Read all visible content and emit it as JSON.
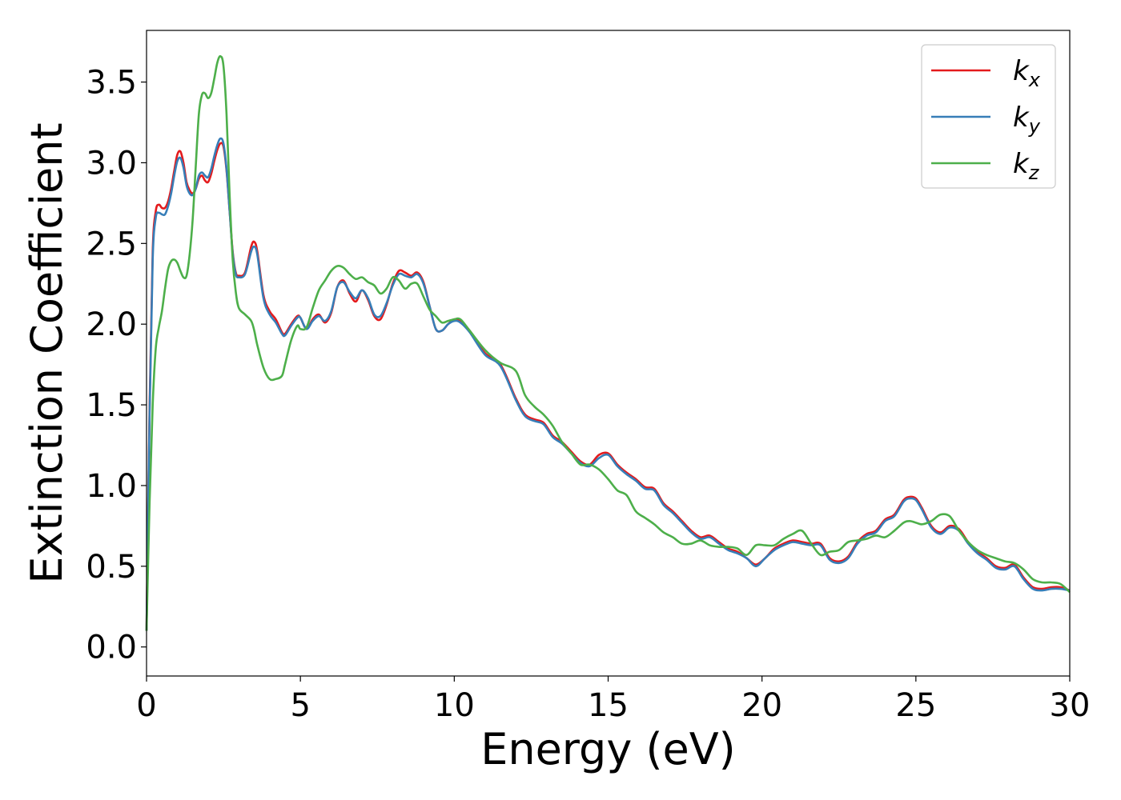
{
  "chart_data": {
    "type": "line",
    "title": "",
    "xlabel": "Energy (eV)",
    "ylabel": "Extinction Coefficient",
    "xlim": [
      0,
      30
    ],
    "ylim": [
      -0.18,
      3.82
    ],
    "xticks": [
      0,
      5,
      10,
      15,
      20,
      25,
      30
    ],
    "xtick_labels": [
      "0",
      "5",
      "10",
      "15",
      "20",
      "25",
      "30"
    ],
    "yticks": [
      0.0,
      0.5,
      1.0,
      1.5,
      2.0,
      2.5,
      3.0,
      3.5
    ],
    "ytick_labels": [
      "0.0",
      "0.5",
      "1.0",
      "1.5",
      "2.0",
      "2.5",
      "3.0",
      "3.5"
    ],
    "grid": false,
    "legend_position": "top-right",
    "series": [
      {
        "name": "k",
        "subscript": "x",
        "color": "#e41a1c",
        "x": [
          0,
          0.1,
          0.2,
          0.3,
          0.4,
          0.5,
          0.6,
          0.7,
          0.8,
          0.9,
          1.0,
          1.1,
          1.2,
          1.3,
          1.4,
          1.5,
          1.6,
          1.7,
          1.8,
          1.9,
          2.0,
          2.1,
          2.2,
          2.3,
          2.4,
          2.5,
          2.6,
          2.7,
          2.8,
          2.9,
          3.0,
          3.2,
          3.4,
          3.5,
          3.6,
          3.8,
          4.0,
          4.2,
          4.4,
          4.5,
          4.7,
          4.9,
          5.0,
          5.2,
          5.4,
          5.6,
          5.8,
          6.0,
          6.2,
          6.4,
          6.6,
          6.8,
          7.0,
          7.2,
          7.4,
          7.6,
          7.8,
          8.0,
          8.2,
          8.4,
          8.6,
          8.8,
          9.0,
          9.2,
          9.4,
          9.6,
          9.8,
          10.0,
          10.2,
          10.5,
          11.0,
          11.5,
          12.0,
          12.3,
          12.6,
          12.9,
          13.2,
          13.5,
          13.8,
          14.1,
          14.4,
          14.7,
          15.0,
          15.3,
          15.6,
          15.9,
          16.2,
          16.5,
          16.8,
          17.1,
          17.4,
          17.7,
          18.0,
          18.3,
          18.6,
          18.9,
          19.2,
          19.5,
          19.8,
          20.1,
          20.4,
          20.7,
          21.0,
          21.3,
          21.6,
          21.9,
          22.2,
          22.5,
          22.8,
          23.1,
          23.4,
          23.7,
          24.0,
          24.3,
          24.6,
          24.8,
          25.0,
          25.2,
          25.5,
          25.8,
          26.1,
          26.4,
          26.7,
          27.0,
          27.3,
          27.6,
          27.9,
          28.2,
          28.5,
          28.8,
          29.1,
          29.4,
          29.7,
          30.0
        ],
        "y": [
          0.1,
          1.5,
          2.45,
          2.7,
          2.74,
          2.72,
          2.72,
          2.76,
          2.84,
          2.95,
          3.05,
          3.07,
          3.0,
          2.88,
          2.83,
          2.81,
          2.84,
          2.9,
          2.92,
          2.89,
          2.88,
          2.93,
          3.01,
          3.08,
          3.12,
          3.1,
          2.95,
          2.7,
          2.45,
          2.32,
          2.3,
          2.32,
          2.48,
          2.51,
          2.45,
          2.18,
          2.08,
          2.03,
          1.95,
          1.94,
          2.0,
          2.05,
          2.04,
          1.97,
          2.03,
          2.06,
          2.01,
          2.07,
          2.23,
          2.27,
          2.19,
          2.14,
          2.21,
          2.15,
          2.05,
          2.03,
          2.12,
          2.25,
          2.33,
          2.32,
          2.3,
          2.32,
          2.26,
          2.11,
          1.97,
          1.96,
          2.0,
          2.03,
          2.02,
          1.96,
          1.82,
          1.75,
          1.54,
          1.44,
          1.41,
          1.39,
          1.31,
          1.27,
          1.21,
          1.15,
          1.13,
          1.19,
          1.2,
          1.13,
          1.08,
          1.04,
          0.99,
          0.98,
          0.89,
          0.84,
          0.78,
          0.72,
          0.68,
          0.69,
          0.65,
          0.61,
          0.59,
          0.55,
          0.51,
          0.55,
          0.61,
          0.64,
          0.66,
          0.65,
          0.64,
          0.64,
          0.55,
          0.53,
          0.56,
          0.65,
          0.7,
          0.72,
          0.79,
          0.82,
          0.91,
          0.93,
          0.92,
          0.86,
          0.75,
          0.71,
          0.75,
          0.73,
          0.65,
          0.59,
          0.55,
          0.5,
          0.49,
          0.51,
          0.43,
          0.37,
          0.36,
          0.37,
          0.37,
          0.35
        ]
      },
      {
        "name": "k",
        "subscript": "y",
        "color": "#377eb8",
        "x": [
          0,
          0.1,
          0.2,
          0.3,
          0.4,
          0.5,
          0.6,
          0.7,
          0.8,
          0.9,
          1.0,
          1.1,
          1.2,
          1.3,
          1.4,
          1.5,
          1.6,
          1.7,
          1.8,
          1.9,
          2.0,
          2.1,
          2.2,
          2.3,
          2.4,
          2.5,
          2.6,
          2.7,
          2.8,
          2.9,
          3.0,
          3.2,
          3.4,
          3.5,
          3.6,
          3.8,
          4.0,
          4.2,
          4.4,
          4.5,
          4.7,
          4.9,
          5.0,
          5.2,
          5.4,
          5.6,
          5.8,
          6.0,
          6.2,
          6.4,
          6.6,
          6.8,
          7.0,
          7.2,
          7.4,
          7.6,
          7.8,
          8.0,
          8.2,
          8.4,
          8.6,
          8.8,
          9.0,
          9.2,
          9.4,
          9.6,
          9.8,
          10.0,
          10.2,
          10.5,
          11.0,
          11.5,
          12.0,
          12.3,
          12.6,
          12.9,
          13.2,
          13.5,
          13.8,
          14.1,
          14.4,
          14.7,
          15.0,
          15.3,
          15.6,
          15.9,
          16.2,
          16.5,
          16.8,
          17.1,
          17.4,
          17.7,
          18.0,
          18.3,
          18.6,
          18.9,
          19.2,
          19.5,
          19.8,
          20.1,
          20.4,
          20.7,
          21.0,
          21.3,
          21.6,
          21.9,
          22.2,
          22.5,
          22.8,
          23.1,
          23.4,
          23.7,
          24.0,
          24.3,
          24.6,
          24.8,
          25.0,
          25.2,
          25.5,
          25.8,
          26.1,
          26.4,
          26.7,
          27.0,
          27.3,
          27.6,
          27.9,
          28.2,
          28.5,
          28.8,
          29.1,
          29.4,
          29.7,
          30.0
        ],
        "y": [
          0.1,
          1.45,
          2.4,
          2.66,
          2.69,
          2.68,
          2.68,
          2.73,
          2.81,
          2.92,
          3.01,
          3.03,
          2.97,
          2.86,
          2.81,
          2.8,
          2.84,
          2.92,
          2.94,
          2.92,
          2.91,
          2.96,
          3.04,
          3.11,
          3.15,
          3.12,
          2.96,
          2.7,
          2.44,
          2.31,
          2.29,
          2.31,
          2.45,
          2.48,
          2.43,
          2.16,
          2.06,
          2.01,
          1.94,
          1.93,
          1.99,
          2.04,
          2.04,
          1.97,
          2.02,
          2.05,
          2.02,
          2.08,
          2.23,
          2.26,
          2.2,
          2.16,
          2.21,
          2.16,
          2.06,
          2.05,
          2.13,
          2.24,
          2.31,
          2.3,
          2.29,
          2.31,
          2.25,
          2.11,
          1.97,
          1.96,
          2.0,
          2.02,
          2.01,
          1.95,
          1.81,
          1.74,
          1.53,
          1.43,
          1.4,
          1.38,
          1.3,
          1.26,
          1.2,
          1.14,
          1.12,
          1.17,
          1.19,
          1.12,
          1.07,
          1.03,
          0.98,
          0.97,
          0.88,
          0.83,
          0.77,
          0.71,
          0.67,
          0.68,
          0.64,
          0.6,
          0.58,
          0.55,
          0.5,
          0.55,
          0.6,
          0.63,
          0.65,
          0.64,
          0.63,
          0.63,
          0.54,
          0.52,
          0.55,
          0.64,
          0.69,
          0.71,
          0.78,
          0.81,
          0.9,
          0.92,
          0.91,
          0.85,
          0.74,
          0.7,
          0.74,
          0.72,
          0.64,
          0.58,
          0.54,
          0.49,
          0.48,
          0.5,
          0.42,
          0.36,
          0.35,
          0.36,
          0.36,
          0.35
        ]
      },
      {
        "name": "k",
        "subscript": "z",
        "color": "#4daf4a",
        "x": [
          0,
          0.1,
          0.2,
          0.3,
          0.4,
          0.5,
          0.6,
          0.7,
          0.8,
          0.9,
          1.0,
          1.1,
          1.2,
          1.3,
          1.4,
          1.5,
          1.6,
          1.7,
          1.8,
          1.9,
          2.0,
          2.1,
          2.2,
          2.3,
          2.4,
          2.5,
          2.6,
          2.7,
          2.8,
          2.9,
          3.0,
          3.2,
          3.4,
          3.5,
          3.6,
          3.8,
          4.0,
          4.2,
          4.4,
          4.5,
          4.7,
          4.9,
          5.0,
          5.2,
          5.4,
          5.6,
          5.8,
          6.0,
          6.2,
          6.4,
          6.6,
          6.8,
          7.0,
          7.2,
          7.4,
          7.6,
          7.8,
          8.0,
          8.2,
          8.4,
          8.6,
          8.8,
          9.0,
          9.2,
          9.4,
          9.6,
          9.8,
          10.0,
          10.2,
          10.5,
          11.0,
          11.5,
          12.0,
          12.3,
          12.6,
          12.9,
          13.2,
          13.5,
          13.8,
          14.1,
          14.4,
          14.7,
          15.0,
          15.3,
          15.6,
          15.9,
          16.2,
          16.5,
          16.8,
          17.1,
          17.4,
          17.7,
          18.0,
          18.3,
          18.6,
          18.9,
          19.2,
          19.5,
          19.8,
          20.1,
          20.4,
          20.7,
          21.0,
          21.3,
          21.6,
          21.9,
          22.2,
          22.5,
          22.8,
          23.1,
          23.4,
          23.7,
          24.0,
          24.3,
          24.6,
          24.8,
          25.0,
          25.2,
          25.5,
          25.8,
          26.1,
          26.4,
          26.7,
          27.0,
          27.3,
          27.6,
          27.9,
          28.2,
          28.5,
          28.8,
          29.1,
          29.4,
          29.7,
          30.0
        ],
        "y": [
          0.1,
          0.9,
          1.5,
          1.85,
          1.98,
          2.08,
          2.22,
          2.34,
          2.39,
          2.4,
          2.38,
          2.33,
          2.29,
          2.3,
          2.43,
          2.65,
          2.98,
          3.3,
          3.42,
          3.43,
          3.4,
          3.43,
          3.52,
          3.62,
          3.66,
          3.6,
          3.3,
          2.8,
          2.4,
          2.2,
          2.1,
          2.06,
          2.02,
          1.96,
          1.87,
          1.73,
          1.66,
          1.66,
          1.68,
          1.75,
          1.9,
          1.99,
          1.97,
          1.98,
          2.1,
          2.21,
          2.27,
          2.33,
          2.36,
          2.35,
          2.31,
          2.28,
          2.29,
          2.26,
          2.24,
          2.19,
          2.22,
          2.29,
          2.27,
          2.22,
          2.25,
          2.25,
          2.17,
          2.09,
          2.05,
          2.01,
          2.02,
          2.03,
          2.03,
          1.96,
          1.84,
          1.76,
          1.71,
          1.56,
          1.49,
          1.44,
          1.37,
          1.27,
          1.2,
          1.13,
          1.13,
          1.1,
          1.04,
          0.97,
          0.94,
          0.84,
          0.8,
          0.76,
          0.71,
          0.68,
          0.64,
          0.64,
          0.66,
          0.63,
          0.62,
          0.62,
          0.61,
          0.57,
          0.63,
          0.63,
          0.63,
          0.67,
          0.7,
          0.72,
          0.64,
          0.57,
          0.59,
          0.6,
          0.65,
          0.66,
          0.67,
          0.69,
          0.68,
          0.72,
          0.77,
          0.78,
          0.77,
          0.76,
          0.78,
          0.82,
          0.81,
          0.72,
          0.65,
          0.6,
          0.57,
          0.55,
          0.53,
          0.52,
          0.48,
          0.42,
          0.4,
          0.4,
          0.39,
          0.34
        ]
      }
    ]
  }
}
